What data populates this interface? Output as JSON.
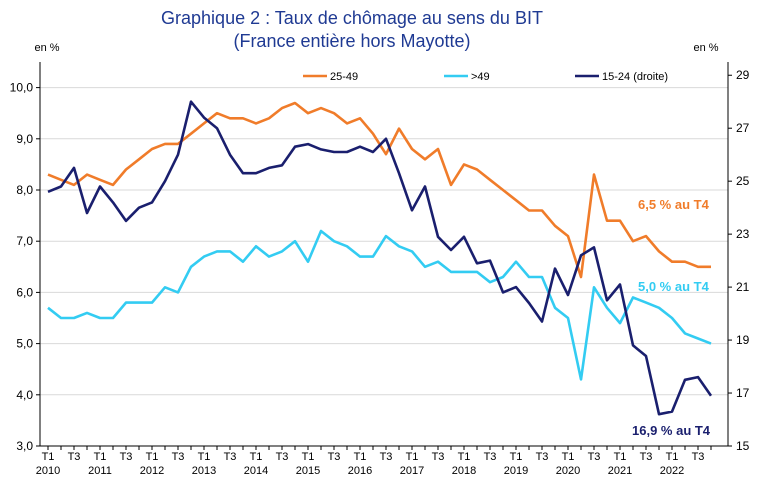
{
  "chart_data": {
    "type": "line",
    "title": "Graphique 2 : Taux de chômage au sens du BIT",
    "subtitle": "(France entière hors Mayotte)",
    "y_unit_left": "en %",
    "y_unit_right": "en %",
    "ylim_left": [
      3,
      10.5
    ],
    "ylim_right": [
      15,
      29.5
    ],
    "yticks_left": [
      "3,0",
      "4,0",
      "5,0",
      "6,0",
      "7,0",
      "8,0",
      "9,0",
      "10,0"
    ],
    "yticks_right": [
      "15",
      "17",
      "19",
      "21",
      "23",
      "25",
      "27",
      "29"
    ],
    "quarter_labels": [
      "T1",
      "T3"
    ],
    "year_labels": [
      "2010",
      "2011",
      "2012",
      "2013",
      "2014",
      "2015",
      "2016",
      "2017",
      "2018",
      "2019",
      "2020",
      "2021",
      "2022"
    ],
    "series": [
      {
        "name": "25-49",
        "axis": "left",
        "color": "#f07c2a",
        "values": [
          8.3,
          8.2,
          8.1,
          8.3,
          8.2,
          8.1,
          8.4,
          8.6,
          8.8,
          8.9,
          8.9,
          9.1,
          9.3,
          9.5,
          9.4,
          9.4,
          9.3,
          9.4,
          9.6,
          9.7,
          9.5,
          9.6,
          9.5,
          9.3,
          9.4,
          9.1,
          8.7,
          9.2,
          8.8,
          8.6,
          8.8,
          8.1,
          8.5,
          8.4,
          8.2,
          8.0,
          7.8,
          7.6,
          7.6,
          7.3,
          7.1,
          6.3,
          8.3,
          7.4,
          7.4,
          7.0,
          7.1,
          6.8,
          6.6,
          6.6,
          6.5,
          6.5
        ]
      },
      {
        "name": ">49",
        "axis": "left",
        "color": "#33ccf2",
        "values": [
          5.7,
          5.5,
          5.5,
          5.6,
          5.5,
          5.5,
          5.8,
          5.8,
          5.8,
          6.1,
          6.0,
          6.5,
          6.7,
          6.8,
          6.8,
          6.6,
          6.9,
          6.7,
          6.8,
          7.0,
          6.6,
          7.2,
          7.0,
          6.9,
          6.7,
          6.7,
          7.1,
          6.9,
          6.8,
          6.5,
          6.6,
          6.4,
          6.4,
          6.4,
          6.2,
          6.3,
          6.6,
          6.3,
          6.3,
          5.7,
          5.5,
          4.3,
          6.1,
          5.7,
          5.4,
          5.9,
          5.8,
          5.7,
          5.5,
          5.2,
          5.1,
          5.0
        ]
      },
      {
        "name": "15-24 (droite)",
        "axis": "right",
        "color": "#1a1f6e",
        "values": [
          24.6,
          24.8,
          25.5,
          23.8,
          24.8,
          24.2,
          23.5,
          24.0,
          24.2,
          25.0,
          26.0,
          28.0,
          27.4,
          27.0,
          26.0,
          25.3,
          25.3,
          25.5,
          25.6,
          26.3,
          26.4,
          26.2,
          26.1,
          26.1,
          26.3,
          26.1,
          26.6,
          25.3,
          23.9,
          24.8,
          22.9,
          22.4,
          22.9,
          21.9,
          22.0,
          20.8,
          21.0,
          20.4,
          19.7,
          21.7,
          20.7,
          22.2,
          22.5,
          20.5,
          21.1,
          18.8,
          18.4,
          16.2,
          16.3,
          17.5,
          17.6,
          16.9
        ]
      }
    ],
    "annotations": [
      {
        "text": "6,5 % au T4",
        "color": "#f07c2a"
      },
      {
        "text": "5,0 % au T4",
        "color": "#33ccf2"
      },
      {
        "text": "16,9 % au T4",
        "color": "#1a1f6e"
      }
    ],
    "legend_position": "top"
  }
}
